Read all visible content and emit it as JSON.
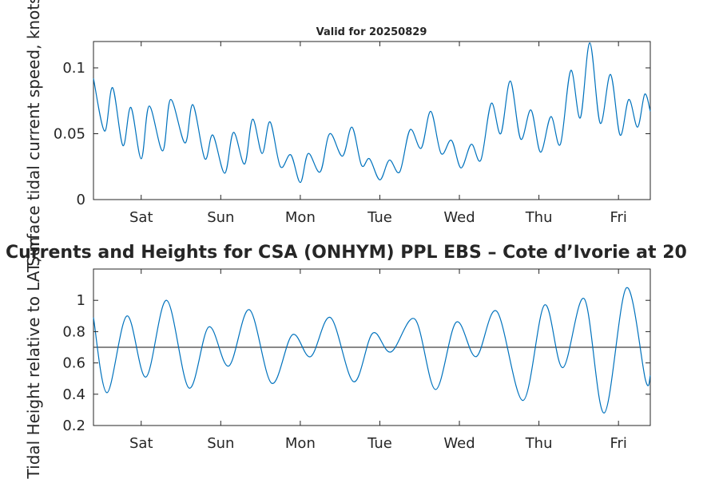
{
  "chart_data": [
    {
      "type": "line",
      "title": "Valid for 20250829",
      "ylabel": "Surface tidal current speed, knots",
      "xlabel": "",
      "x_tick_labels": [
        "Sat",
        "Sun",
        "Mon",
        "Tue",
        "Wed",
        "Thu",
        "Fri"
      ],
      "x_range": [
        0,
        7
      ],
      "ylim": [
        0,
        0.12
      ],
      "y_ticks": [
        0,
        0.05,
        0.1
      ],
      "y_tick_labels": [
        "0",
        "0.05",
        "0.1"
      ],
      "grid": false,
      "color": "#0072bd",
      "series": [
        {
          "x": [
            0,
            0.14,
            0.24,
            0.37,
            0.47,
            0.6,
            0.7,
            0.87,
            0.97,
            1.15,
            1.25,
            1.4,
            1.5,
            1.65,
            1.76,
            1.9,
            2,
            2.12,
            2.22,
            2.35,
            2.48,
            2.6,
            2.7,
            2.85,
            2.97,
            3.13,
            3.25,
            3.37,
            3.47,
            3.6,
            3.72,
            3.85,
            3.98,
            4.12,
            4.24,
            4.37,
            4.5,
            4.62,
            4.75,
            4.87,
            5,
            5.12,
            5.24,
            5.37,
            5.5,
            5.62,
            5.75,
            5.87,
            6,
            6.12,
            6.24,
            6.37,
            6.5,
            6.62,
            6.73,
            6.84,
            6.93,
            7
          ],
          "y": [
            0.092,
            0.052,
            0.085,
            0.041,
            0.07,
            0.031,
            0.071,
            0.037,
            0.076,
            0.043,
            0.072,
            0.031,
            0.049,
            0.02,
            0.051,
            0.027,
            0.061,
            0.035,
            0.059,
            0.025,
            0.034,
            0.013,
            0.035,
            0.021,
            0.05,
            0.033,
            0.055,
            0.026,
            0.031,
            0.015,
            0.03,
            0.021,
            0.053,
            0.039,
            0.067,
            0.035,
            0.045,
            0.024,
            0.042,
            0.03,
            0.073,
            0.05,
            0.09,
            0.046,
            0.068,
            0.036,
            0.063,
            0.042,
            0.098,
            0.062,
            0.119,
            0.058,
            0.095,
            0.049,
            0.076,
            0.055,
            0.08,
            0.067
          ]
        }
      ]
    },
    {
      "type": "line",
      "title": "Currents and Heights for CSA (ONHYM) PPL EBS  – Cote d’Ivorie at 20",
      "ylabel": "Tidal Height relative to LAT, m",
      "xlabel": "",
      "x_tick_labels": [
        "Sat",
        "Sun",
        "Mon",
        "Tue",
        "Wed",
        "Thu",
        "Fri"
      ],
      "x_range": [
        0,
        7
      ],
      "ylim": [
        0.2,
        1.2
      ],
      "y_ticks": [
        0.2,
        0.4,
        0.6,
        0.8,
        1.0
      ],
      "y_tick_labels": [
        "0.2",
        "0.4",
        "0.6",
        "0.8",
        "1"
      ],
      "grid": false,
      "color": "#0072bd",
      "reference_line": {
        "y": 0.7,
        "color": "#404040"
      },
      "series": [
        {
          "x": [
            0,
            0.17,
            0.42,
            0.66,
            0.92,
            1.2,
            1.45,
            1.7,
            1.96,
            2.24,
            2.5,
            2.73,
            2.98,
            3.27,
            3.51,
            3.74,
            4.04,
            4.3,
            4.56,
            4.81,
            5.07,
            5.4,
            5.67,
            5.9,
            6.17,
            6.42,
            6.7,
            6.94,
            7
          ],
          "y": [
            0.89,
            0.41,
            0.9,
            0.51,
            1.0,
            0.44,
            0.83,
            0.58,
            0.94,
            0.47,
            0.78,
            0.64,
            0.89,
            0.48,
            0.79,
            0.67,
            0.88,
            0.43,
            0.86,
            0.64,
            0.93,
            0.36,
            0.97,
            0.57,
            1.01,
            0.28,
            1.08,
            0.49,
            0.52
          ]
        }
      ]
    }
  ]
}
